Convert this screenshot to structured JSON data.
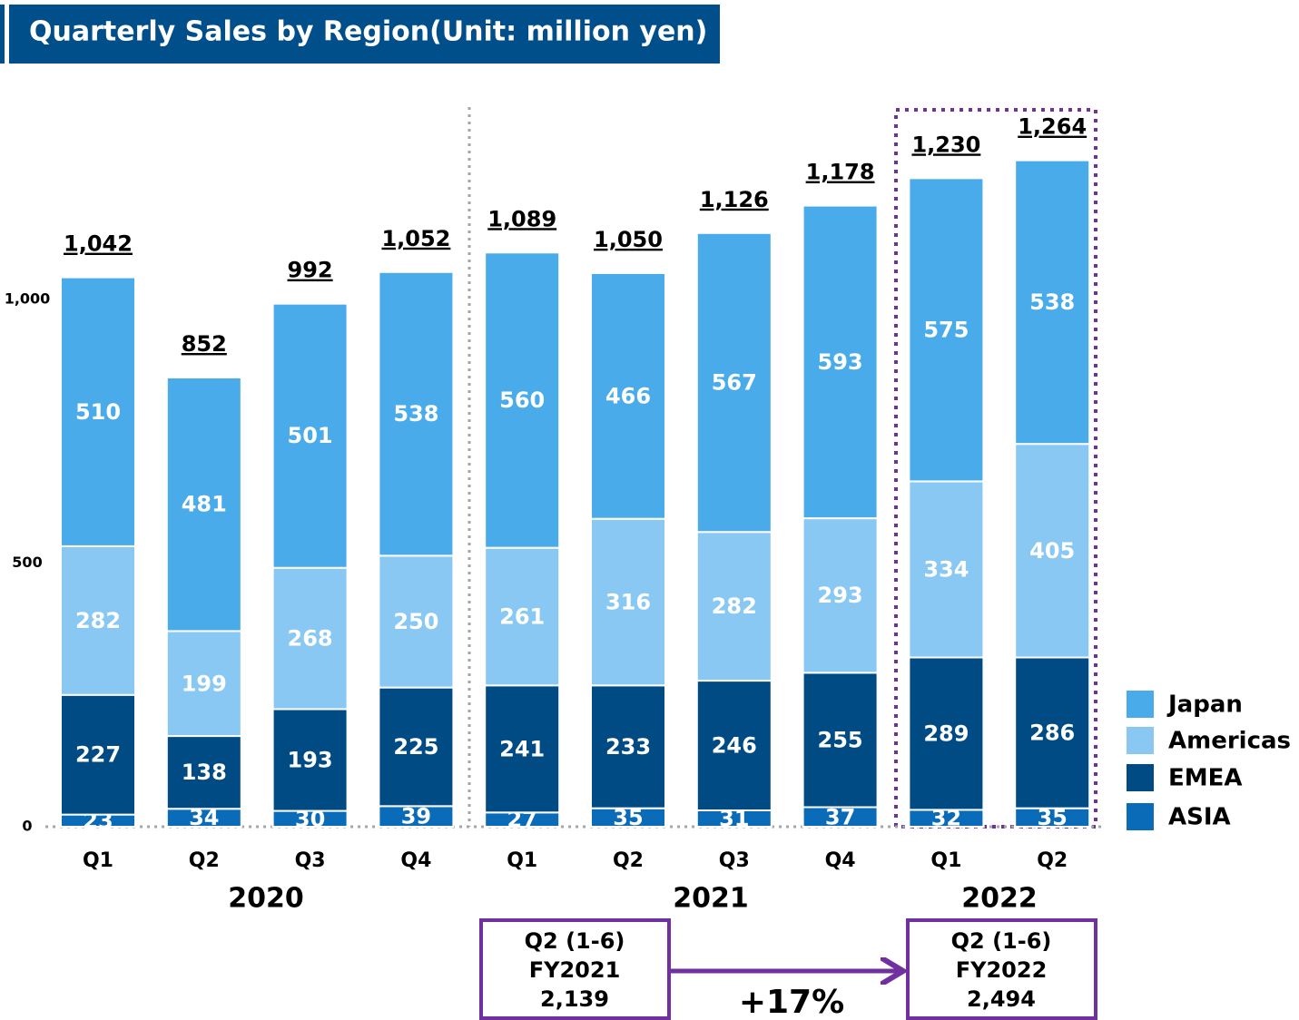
{
  "chart_data": {
    "type": "stacked_bar",
    "title": "Quarterly Sales by Region(Unit: million yen)",
    "categories": [
      "Q1",
      "Q2",
      "Q3",
      "Q4",
      "Q1",
      "Q2",
      "Q3",
      "Q4",
      "Q1",
      "Q2"
    ],
    "x_groups": [
      "2020",
      "2021",
      "2022"
    ],
    "series": [
      {
        "name": "ASIA",
        "color": "#0a6bb8",
        "values": [
          23,
          34,
          30,
          39,
          27,
          35,
          31,
          37,
          32,
          35
        ]
      },
      {
        "name": "EMEA",
        "color": "#004b83",
        "values": [
          227,
          138,
          193,
          225,
          241,
          233,
          246,
          255,
          289,
          286
        ]
      },
      {
        "name": "Americas",
        "color": "#88c8f2",
        "values": [
          282,
          199,
          268,
          250,
          261,
          316,
          282,
          293,
          334,
          405
        ]
      },
      {
        "name": "Japan",
        "color": "#4aabeb",
        "values": [
          510,
          481,
          501,
          538,
          560,
          466,
          567,
          593,
          575,
          538
        ]
      }
    ],
    "totals": {
      "values": [
        1042,
        852,
        992,
        1052,
        1089,
        1050,
        1126,
        1178,
        1230,
        1264
      ],
      "value_labels": [
        "1,042",
        "852",
        "992",
        "1,052",
        "1,089",
        "1,050",
        "1,126",
        "1,178",
        "1,230",
        "1,264"
      ]
    },
    "ylim": [
      0,
      1400
    ],
    "yticks": [
      0,
      500,
      {
        "value": 1000,
        "label": "1,000"
      }
    ],
    "grid": false,
    "legend": "right",
    "annotations": {
      "comparison": [
        {
          "lines": [
            "Q2 (1-6)",
            "FY2021",
            "2,139"
          ]
        },
        {
          "lines": [
            "Q2 (1-6)",
            "FY2022",
            "2,494"
          ]
        }
      ],
      "change": "+17%"
    }
  }
}
